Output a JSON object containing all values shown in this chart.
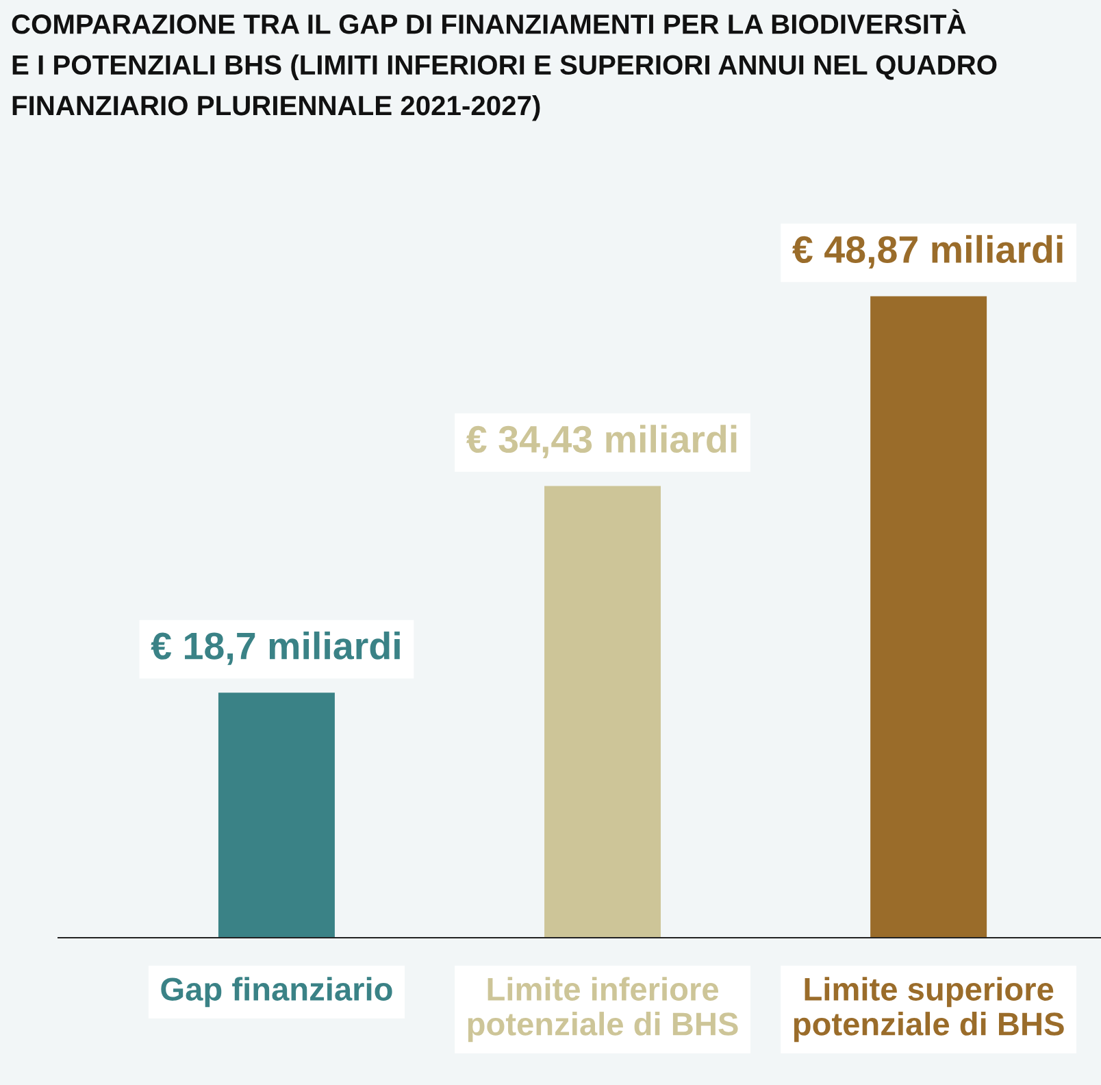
{
  "chart_data": {
    "type": "bar",
    "title": "COMPARAZIONE TRA IL GAP DI FINANZIAMENTI PER LA BIODIVERSITÀ\nE I POTENZIALI BHS (LIMITI INFERIORI E SUPERIORI ANNUI NEL QUADRO\nFINANZIARIO PLURIENNALE 2021-2027)",
    "categories": [
      "Gap finanziario",
      "Limite inferiore\npotenziale di BHS",
      "Limite superiore\npotenziale di BHS"
    ],
    "values": [
      18.7,
      34.43,
      48.87
    ],
    "colors": [
      "#3a8286",
      "#cdc598",
      "#9a6c2a"
    ],
    "value_labels": [
      "€ 18,7 miliardi",
      "€ 34,43 miliardi",
      "€ 48,87 miliardi"
    ],
    "legend": false
  }
}
